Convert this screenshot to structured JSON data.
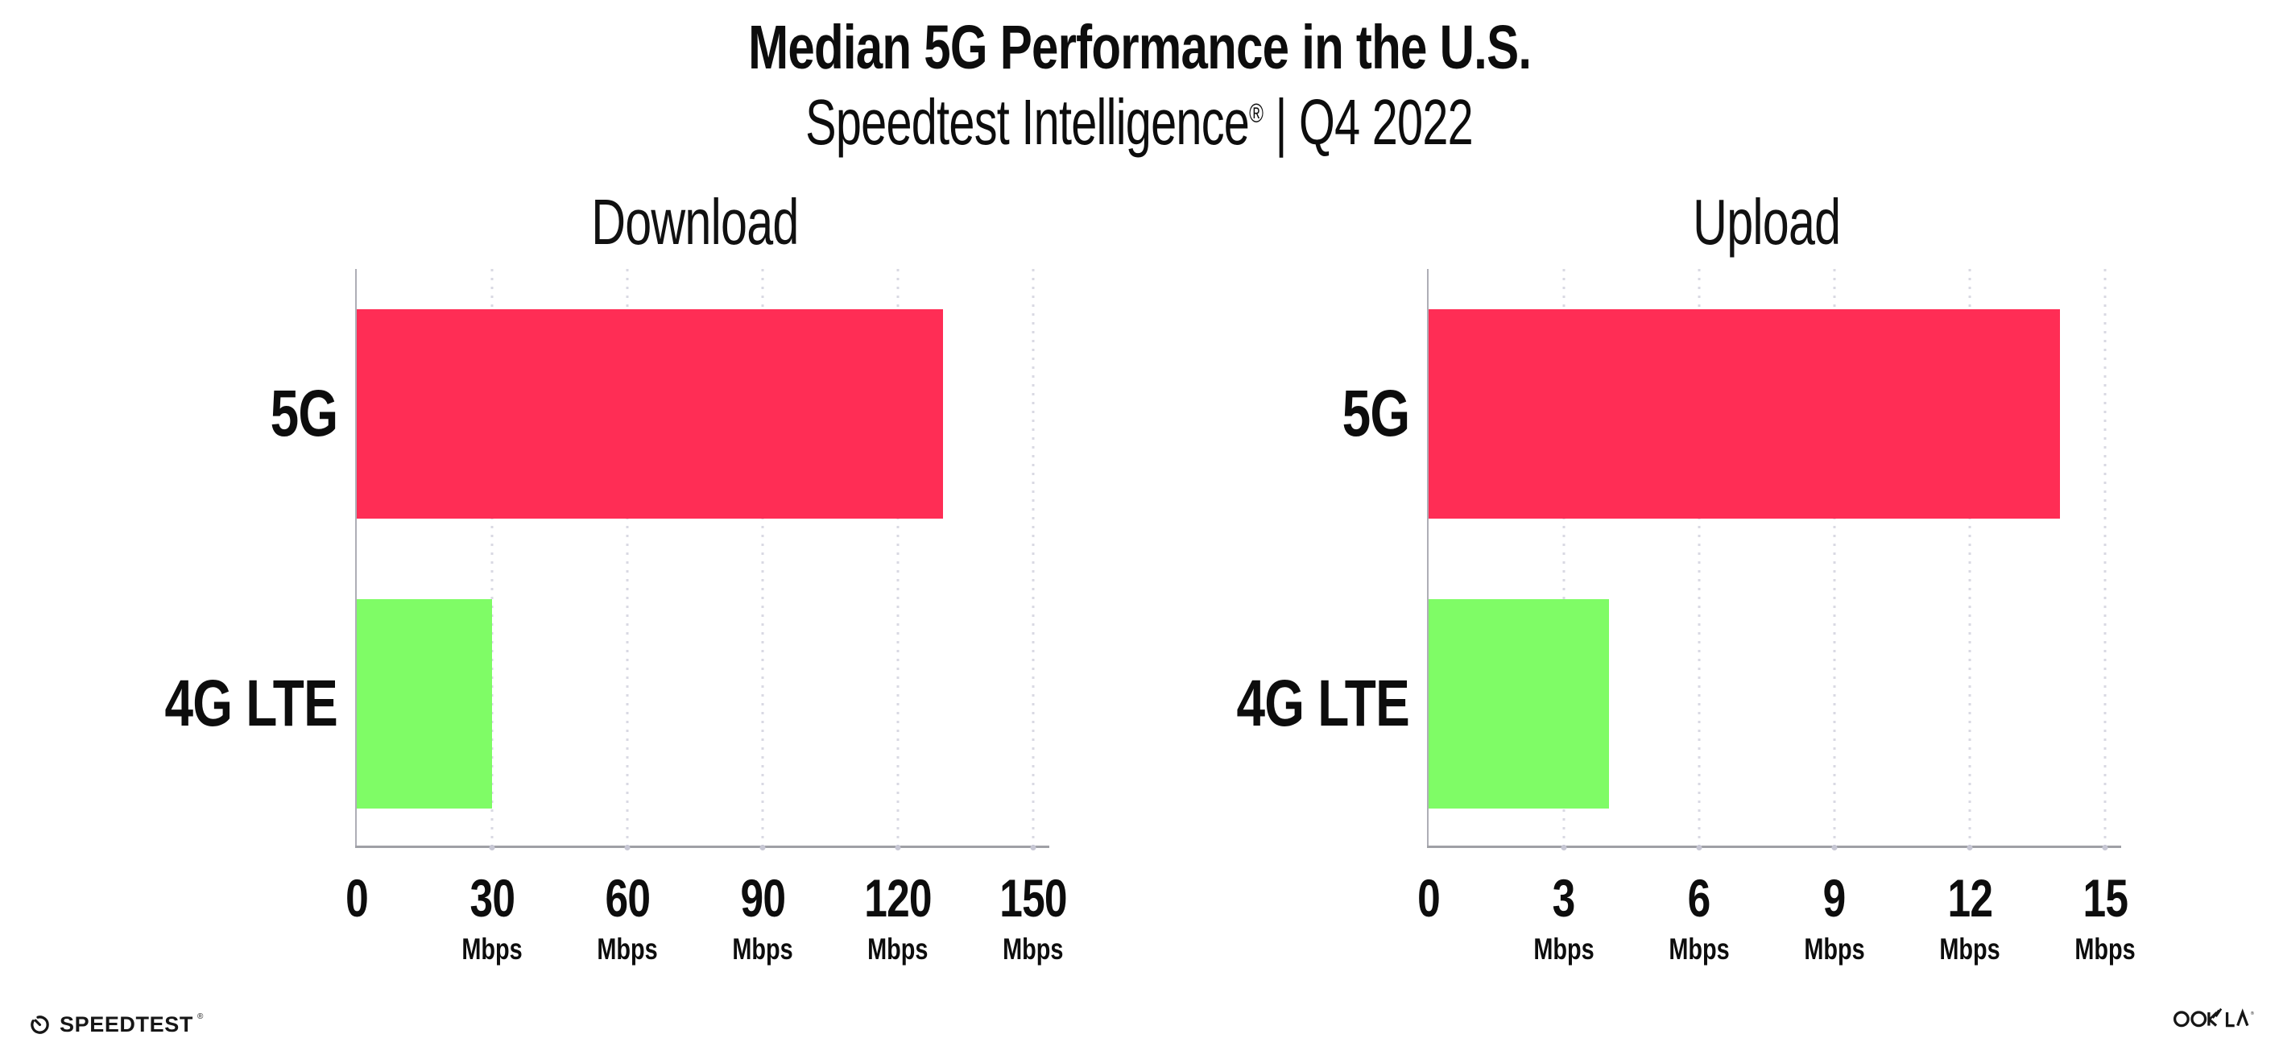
{
  "header": {
    "title": "Median 5G Performance in the U.S.",
    "subtitle_brand": "Speedtest Intelligence",
    "subtitle_reg": "®",
    "subtitle_rest": " | Q4 2022"
  },
  "chart_data": [
    {
      "type": "bar",
      "orientation": "horizontal",
      "title": "Download",
      "categories": [
        "5G",
        "4G LTE"
      ],
      "values": [
        130,
        30
      ],
      "unit": "Mbps",
      "xlim": [
        0,
        150
      ],
      "xticks": [
        0,
        30,
        60,
        90,
        120,
        150
      ],
      "colors": [
        "#FF2D55",
        "#7FFC66"
      ],
      "grid": "vertical-dotted",
      "legend": "none"
    },
    {
      "type": "bar",
      "orientation": "horizontal",
      "title": "Upload",
      "categories": [
        "5G",
        "4G LTE"
      ],
      "values": [
        14,
        4
      ],
      "unit": "Mbps",
      "xlim": [
        0,
        15
      ],
      "xticks": [
        0,
        3,
        6,
        9,
        12,
        15
      ],
      "colors": [
        "#FF2D55",
        "#7FFC66"
      ],
      "grid": "vertical-dotted",
      "legend": "none"
    }
  ],
  "footer": {
    "speedtest_wordmark": "SPEEDTEST",
    "speedtest_reg": "®",
    "ookla_wordmark": "OOKLA",
    "ookla_reg": "®"
  },
  "colors": {
    "bar_5g": "#FF2D55",
    "bar_4g": "#7FFC66",
    "gridline": "#D9D9E3",
    "axis": "#9FA0A6",
    "text": "#0D0D0D"
  }
}
